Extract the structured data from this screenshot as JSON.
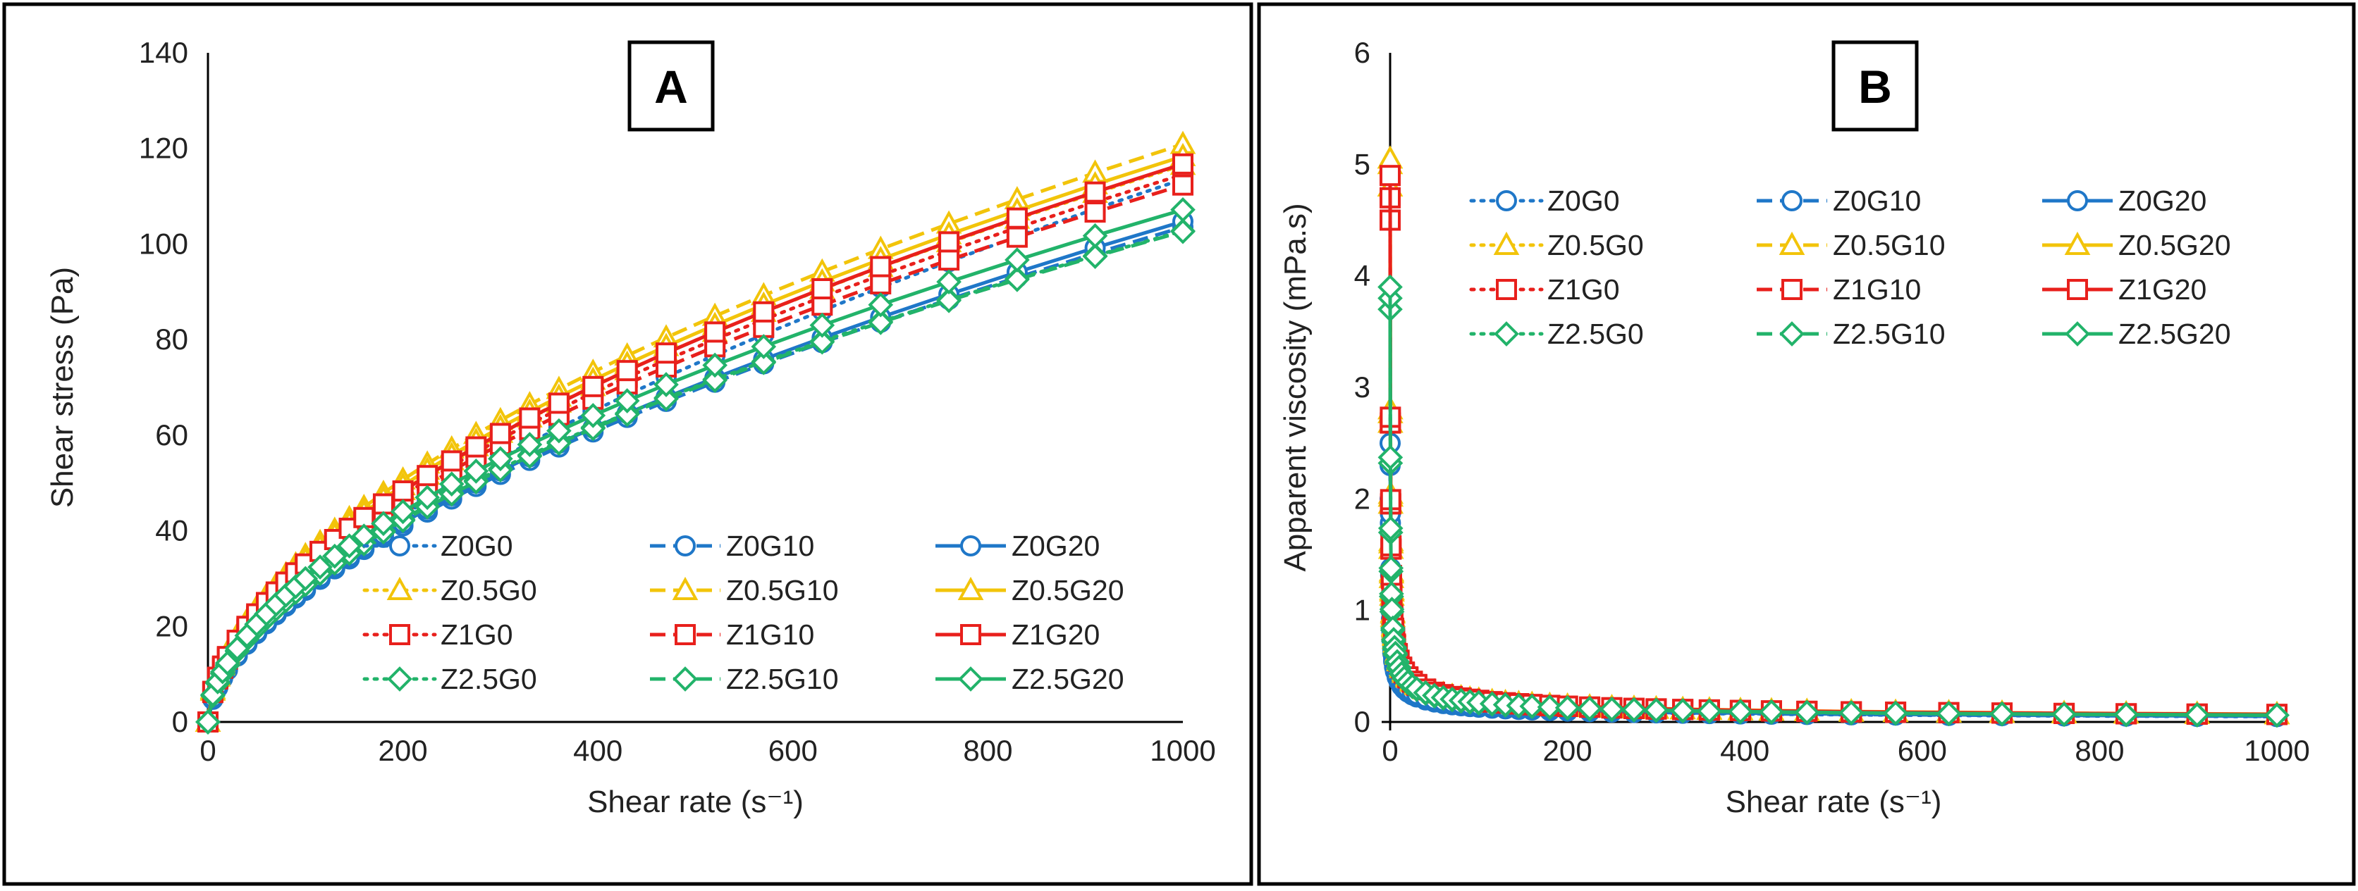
{
  "chart_data": [
    {
      "type": "line",
      "panel": "A",
      "xlabel": "Shear rate (s⁻¹)",
      "ylabel": "Shear stress (Pa)",
      "xlim": [
        0,
        1000
      ],
      "ylim": [
        0,
        140
      ],
      "xticks": [
        "0",
        "200",
        "400",
        "600",
        "800",
        "1000"
      ],
      "yticks": [
        "0",
        "20",
        "40",
        "60",
        "80",
        "100",
        "120",
        "140"
      ],
      "grid": false,
      "legend_position": "bottom-right",
      "model": "power-law",
      "x": [
        0,
        5,
        10,
        15,
        20,
        30,
        40,
        50,
        60,
        70,
        80,
        90,
        100,
        115,
        130,
        145,
        160,
        180,
        200,
        225,
        250,
        275,
        300,
        330,
        360,
        395,
        430,
        470,
        520,
        570,
        630,
        690,
        760,
        830,
        910,
        1000
      ],
      "series": [
        {
          "name": "Z0G0",
          "color": "#1f77c8",
          "dash": "dot",
          "marker": "circle",
          "k": 1.8,
          "n": 0.6
        },
        {
          "name": "Z0G10",
          "color": "#1f77c8",
          "dash": "dash",
          "marker": "circle",
          "k": 1.95,
          "n": 0.575
        },
        {
          "name": "Z0G20",
          "color": "#1f77c8",
          "dash": "solid",
          "marker": "circle",
          "k": 2.0,
          "n": 0.573
        },
        {
          "name": "Z0.5G0",
          "color": "#f2c40a",
          "dash": "dot",
          "marker": "triangle",
          "k": 2.7,
          "n": 0.545
        },
        {
          "name": "Z0.5G10",
          "color": "#f2c40a",
          "dash": "dash",
          "marker": "triangle",
          "k": 2.9,
          "n": 0.54
        },
        {
          "name": "Z0.5G20",
          "color": "#f2c40a",
          "dash": "solid",
          "marker": "triangle",
          "k": 2.8,
          "n": 0.542
        },
        {
          "name": "Z1G0",
          "color": "#e8201c",
          "dash": "dot",
          "marker": "square",
          "k": 2.6,
          "n": 0.548
        },
        {
          "name": "Z1G10",
          "color": "#e8201c",
          "dash": "dash",
          "marker": "square",
          "k": 2.55,
          "n": 0.548
        },
        {
          "name": "Z1G20",
          "color": "#e8201c",
          "dash": "solid",
          "marker": "square",
          "k": 2.65,
          "n": 0.548
        },
        {
          "name": "Z2.5G0",
          "color": "#22b36a",
          "dash": "dot",
          "marker": "diamond",
          "k": 2.3,
          "n": 0.55
        },
        {
          "name": "Z2.5G10",
          "color": "#22b36a",
          "dash": "dash",
          "marker": "diamond",
          "k": 2.25,
          "n": 0.553
        },
        {
          "name": "Z2.5G20",
          "color": "#22b36a",
          "dash": "solid",
          "marker": "diamond",
          "k": 2.35,
          "n": 0.553
        }
      ]
    },
    {
      "type": "line",
      "panel": "B",
      "xlabel": "Shear rate (s⁻¹)",
      "ylabel": "Apparent viscosity (mPa.s)",
      "xlim": [
        0,
        1000
      ],
      "ylim": [
        0,
        6
      ],
      "xticks": [
        "0",
        "200",
        "400",
        "600",
        "800",
        "1000"
      ],
      "yticks": [
        "0",
        "1",
        "2",
        "3",
        "4",
        "5",
        "6"
      ],
      "grid": false,
      "legend_position": "top-right",
      "model": "power-law",
      "x": [
        0.3,
        0.6,
        1,
        1.5,
        2,
        3,
        4,
        5,
        6,
        8,
        10,
        13,
        16,
        20,
        25,
        30,
        40,
        50,
        60,
        70,
        80,
        90,
        100,
        115,
        130,
        145,
        160,
        180,
        200,
        225,
        250,
        275,
        300,
        330,
        360,
        395,
        430,
        470,
        520,
        570,
        630,
        690,
        760,
        830,
        910,
        1000
      ],
      "series": [
        {
          "name": "Z0G0",
          "color": "#1f77c8",
          "dash": "dot",
          "marker": "circle",
          "a": 1.0,
          "b": 0.44,
          "max": 2.0
        },
        {
          "name": "Z0G10",
          "color": "#1f77c8",
          "dash": "dash",
          "marker": "circle",
          "a": 1.05,
          "b": 0.44,
          "max": 2.3
        },
        {
          "name": "Z0G20",
          "color": "#1f77c8",
          "dash": "solid",
          "marker": "circle",
          "a": 1.1,
          "b": 0.44,
          "max": 2.5
        },
        {
          "name": "Z0.5G0",
          "color": "#f2c40a",
          "dash": "dot",
          "marker": "triangle",
          "a": 1.55,
          "b": 0.455,
          "max": 4.8
        },
        {
          "name": "Z0.5G10",
          "color": "#f2c40a",
          "dash": "dash",
          "marker": "triangle",
          "a": 1.6,
          "b": 0.455,
          "max": 5.0
        },
        {
          "name": "Z0.5G20",
          "color": "#f2c40a",
          "dash": "solid",
          "marker": "triangle",
          "a": 1.62,
          "b": 0.455,
          "max": 5.05
        },
        {
          "name": "Z1G0",
          "color": "#e8201c",
          "dash": "dot",
          "marker": "square",
          "a": 1.55,
          "b": 0.455,
          "max": 4.5
        },
        {
          "name": "Z1G10",
          "color": "#e8201c",
          "dash": "dash",
          "marker": "square",
          "a": 1.55,
          "b": 0.455,
          "max": 4.7
        },
        {
          "name": "Z1G20",
          "color": "#e8201c",
          "dash": "solid",
          "marker": "square",
          "a": 1.58,
          "b": 0.455,
          "max": 4.9
        },
        {
          "name": "Z2.5G0",
          "color": "#22b36a",
          "dash": "dot",
          "marker": "diamond",
          "a": 1.35,
          "b": 0.45,
          "max": 3.7
        },
        {
          "name": "Z2.5G10",
          "color": "#22b36a",
          "dash": "dash",
          "marker": "diamond",
          "a": 1.35,
          "b": 0.45,
          "max": 3.8
        },
        {
          "name": "Z2.5G20",
          "color": "#22b36a",
          "dash": "solid",
          "marker": "diamond",
          "a": 1.38,
          "b": 0.45,
          "max": 3.9
        }
      ]
    }
  ]
}
